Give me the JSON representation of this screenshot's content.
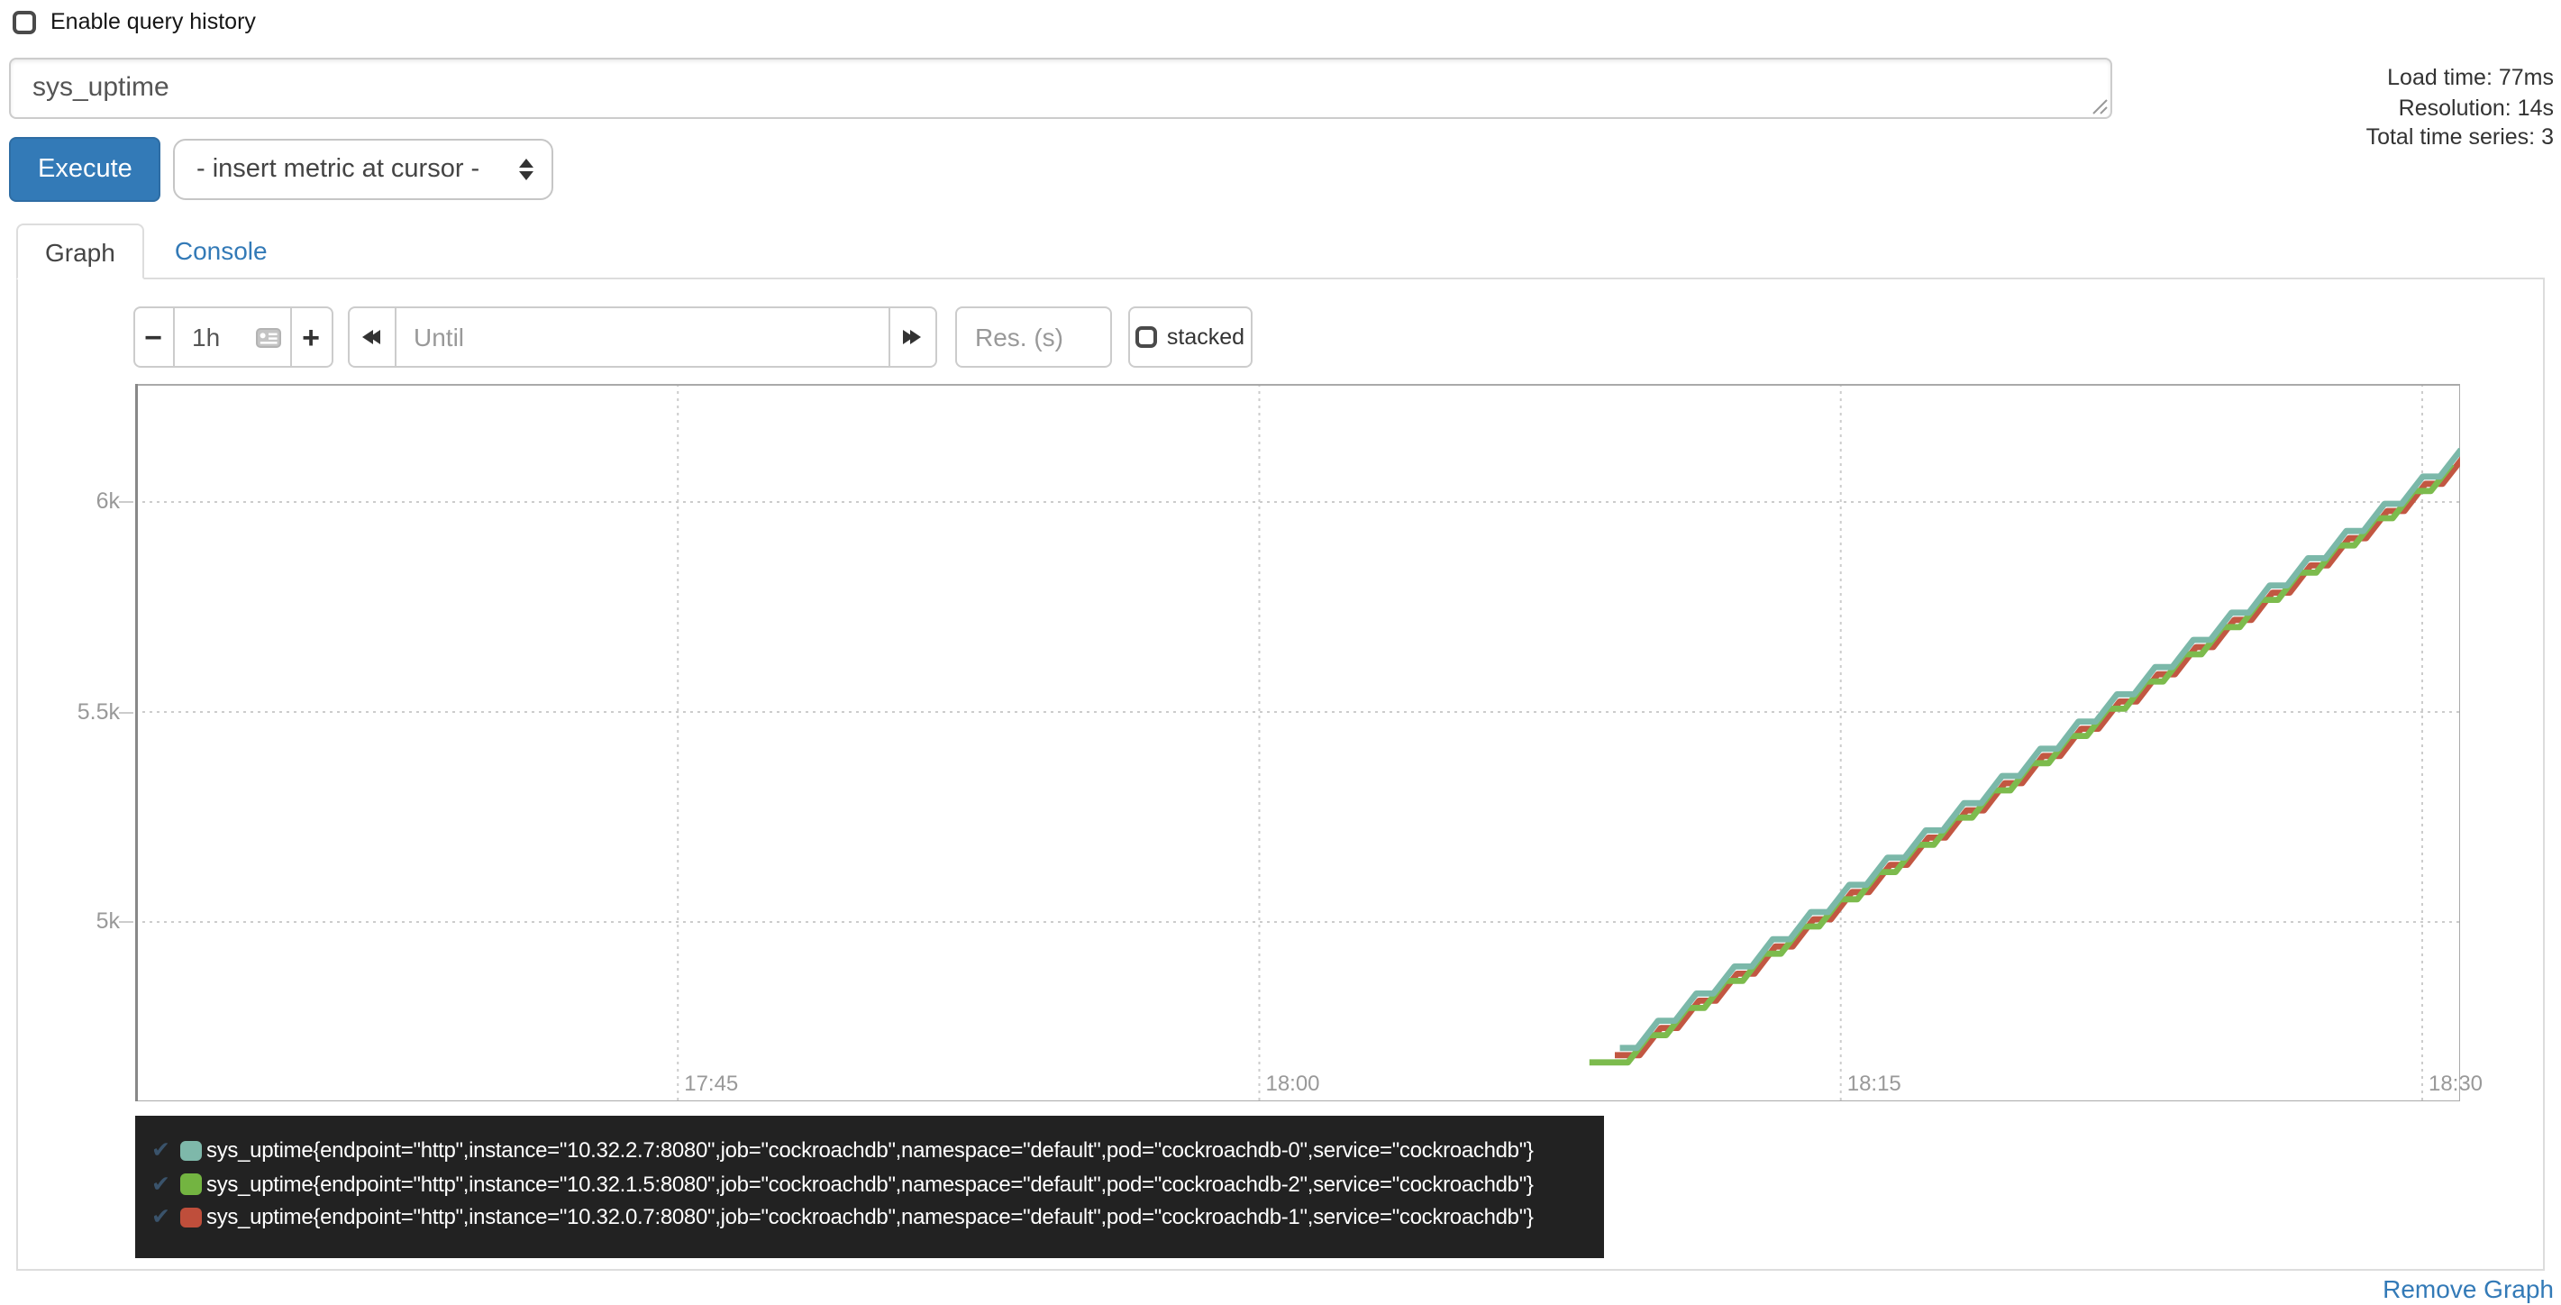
{
  "query_history": {
    "label": "Enable query history",
    "checked": false
  },
  "query_input": {
    "value": "sys_uptime"
  },
  "stats": {
    "load_time": "Load time: 77ms",
    "resolution": "Resolution: 14s",
    "total_series": "Total time series: 3"
  },
  "toolbar": {
    "execute_label": "Execute",
    "insert_metric_label": "- insert metric at cursor -"
  },
  "tabs": {
    "graph": "Graph",
    "console": "Console"
  },
  "controls": {
    "minus_label": "−",
    "plus_label": "+",
    "range_value": "1h",
    "until_placeholder": "Until",
    "res_placeholder": "Res. (s)",
    "stacked_label": "stacked",
    "stacked_checked": false
  },
  "footer": {
    "remove_graph_label": "Remove Graph"
  },
  "colors": {
    "accent_blue": "#337ab7",
    "legend_bg": "#222222",
    "plot_border": "#aaaaaa",
    "axis_line": "#888888",
    "grid_dotted": "#cccccc",
    "axis_text": "#999999"
  },
  "chart_data": {
    "type": "line",
    "title": "",
    "grid": true,
    "legend_position": "bottom",
    "x_axis": {
      "unit": "time",
      "window": [
        "17:31",
        "18:31"
      ],
      "min_range": [
        1,
        61
      ],
      "ticks": [
        {
          "label": "17:45",
          "min": 15
        },
        {
          "label": "18:00",
          "min": 30
        },
        {
          "label": "18:15",
          "min": 45
        },
        {
          "label": "18:30",
          "min": 60
        }
      ]
    },
    "y_axis": {
      "unit": "seconds",
      "ylim": [
        4571,
        6281
      ],
      "ticks": [
        {
          "label": "5k",
          "value": 5000
        },
        {
          "label": "5.5k",
          "value": 5500
        },
        {
          "label": "6k",
          "value": 6000
        }
      ]
    },
    "series": [
      {
        "name": "cockroachdb-1",
        "color": "#c25742",
        "start_min": 39.3,
        "end_min": 61,
        "start_value": 4700,
        "end_value": 6125,
        "steps_per_min": 1,
        "lead_flat_min": 0.2
      },
      {
        "name": "cockroachdb-2",
        "color": "#7cbb4d",
        "start_min": 39.3,
        "end_min": 61,
        "start_value": 4700,
        "end_value": 6125,
        "steps_per_min": 1,
        "lead_flat_min": 0.55
      },
      {
        "name": "cockroachdb-0",
        "color": "#7bb8a9",
        "start_min": 39.3,
        "end_min": 61,
        "start_value": 4700,
        "end_value": 6125,
        "steps_per_min": 1,
        "lead_flat_min": 0
      }
    ]
  },
  "legend": {
    "check": "✔",
    "items": [
      {
        "color": "#7eb8aa",
        "label": "sys_uptime{endpoint=\"http\",instance=\"10.32.2.7:8080\",job=\"cockroachdb\",namespace=\"default\",pod=\"cockroachdb-0\",service=\"cockroachdb\"}"
      },
      {
        "color": "#73b441",
        "label": "sys_uptime{endpoint=\"http\",instance=\"10.32.1.5:8080\",job=\"cockroachdb\",namespace=\"default\",pod=\"cockroachdb-2\",service=\"cockroachdb\"}"
      },
      {
        "color": "#bf4e3b",
        "label": "sys_uptime{endpoint=\"http\",instance=\"10.32.0.7:8080\",job=\"cockroachdb\",namespace=\"default\",pod=\"cockroachdb-1\",service=\"cockroachdb\"}"
      }
    ]
  }
}
